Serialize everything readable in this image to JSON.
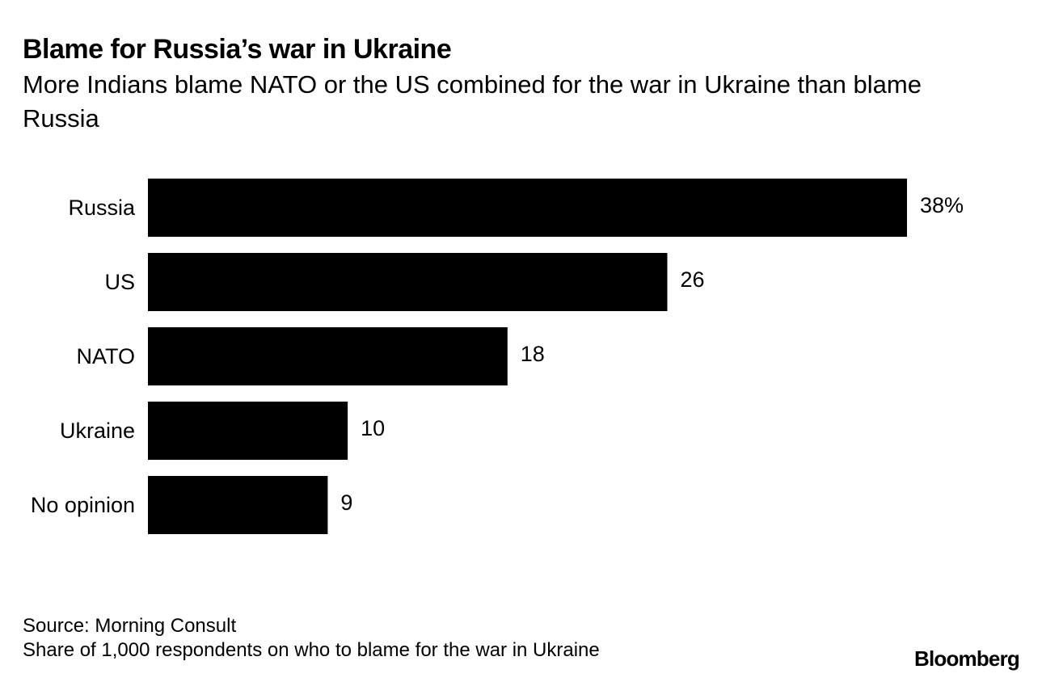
{
  "header": {
    "title": "Blame for Russia’s war in Ukraine",
    "subtitle": "More Indians blame NATO or the US combined for the war in Ukraine than blame Russia"
  },
  "chart_data": {
    "type": "bar",
    "orientation": "horizontal",
    "categories": [
      "Russia",
      "US",
      "NATO",
      "Ukraine",
      "No opinion"
    ],
    "values": [
      38,
      26,
      18,
      10,
      9
    ],
    "data_labels": [
      "38%",
      "26",
      "18",
      "10",
      "9"
    ],
    "title": "Blame for Russia’s war in Ukraine",
    "subtitle": "More Indians blame NATO or the US combined for the war in Ukraine than blame Russia",
    "xlabel": "",
    "ylabel": "",
    "xlim": [
      0,
      38
    ],
    "unit": "%",
    "grid": false,
    "bar_color": "#000000"
  },
  "footer": {
    "source": "Source: Morning Consult",
    "note": "Share of 1,000 respondents on who to blame for the war in Ukraine",
    "brand": "Bloomberg"
  }
}
